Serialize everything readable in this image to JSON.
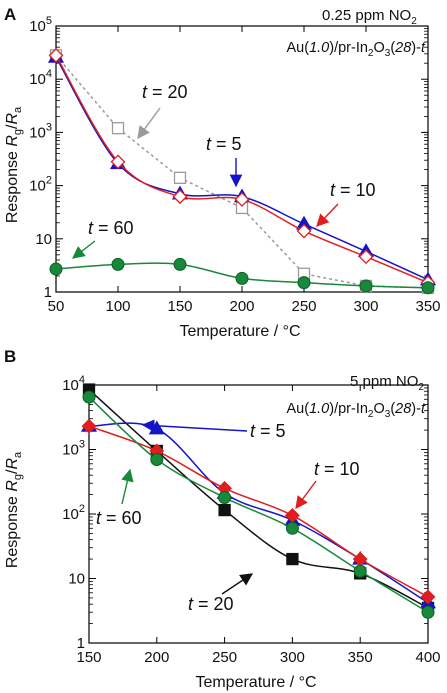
{
  "chart_data": [
    {
      "panel_label": "A",
      "type": "line",
      "condition": "0.25 ppm NO",
      "condition_sub": "2",
      "material": {
        "pre": "Au(",
        "loading": "1.0",
        "mid1": ")/pr-In",
        "sub2": "2",
        "mid2": "O",
        "sub3": "3",
        "mid3": "(",
        "size": "28",
        "post": ")-",
        "var": "t"
      },
      "xlabel": "Temperature / °C",
      "ylabel": {
        "main": "Response ",
        "num": "R",
        "num_sub": "g",
        "slash": "/",
        "den": "R",
        "den_sub": "a"
      },
      "xlim": [
        50,
        350
      ],
      "ylim": [
        1,
        100000
      ],
      "yscale": "log",
      "x_ticks": [
        50,
        100,
        150,
        200,
        250,
        300,
        350
      ],
      "x_tick_labels": [
        "50",
        "100",
        "150",
        "200",
        "250",
        "300",
        "350"
      ],
      "y_ticks": [
        1,
        10,
        100,
        1000,
        10000,
        100000
      ],
      "y_tick_labels": [
        {
          "base": "1",
          "exp": ""
        },
        {
          "base": "10",
          "exp": ""
        },
        {
          "base": "10",
          "exp": "2"
        },
        {
          "base": "10",
          "exp": "3"
        },
        {
          "base": "10",
          "exp": "4"
        },
        {
          "base": "10",
          "exp": "5"
        }
      ],
      "series": [
        {
          "name": "t = 20",
          "color": "#9a9a9a",
          "marker": "square-open",
          "dash": true,
          "x": [
            50,
            100,
            150,
            200,
            250,
            300,
            350
          ],
          "y": [
            28000,
            1200,
            140,
            38,
            2.2,
            1.3,
            1.2
          ]
        },
        {
          "name": "t = 5",
          "color": "#1414c8",
          "marker": "triangle",
          "dash": false,
          "x": [
            50,
            100,
            150,
            200,
            250,
            300,
            350
          ],
          "y": [
            26000,
            260,
            70,
            62,
            19,
            5.8,
            1.7
          ]
        },
        {
          "name": "t = 10",
          "color": "#e01e1e",
          "marker": "diamond-open",
          "dash": false,
          "x": [
            50,
            100,
            150,
            200,
            250,
            300,
            350
          ],
          "y": [
            28000,
            280,
            62,
            55,
            14,
            4.6,
            1.5
          ]
        },
        {
          "name": "t = 60",
          "color": "#18883a",
          "marker": "circle",
          "dash": false,
          "x": [
            50,
            100,
            150,
            200,
            250,
            300,
            350
          ],
          "y": [
            2.7,
            3.3,
            3.3,
            1.8,
            1.5,
            1.3,
            1.2
          ]
        }
      ],
      "annotations": [
        {
          "series": "t = 20",
          "prefix": "t",
          "text": " = 20",
          "color": "#111111"
        },
        {
          "series": "t = 5",
          "prefix": "t",
          "text": " = 5",
          "color": "#1414c8"
        },
        {
          "series": "t = 10",
          "prefix": "t",
          "text": " = 10",
          "color": "#e01e1e"
        },
        {
          "series": "t = 60",
          "prefix": "t",
          "text": " = 60",
          "color": "#18883a"
        }
      ]
    },
    {
      "panel_label": "B",
      "type": "line",
      "condition": "5 ppm NO",
      "condition_sub": "2",
      "material": {
        "pre": "Au(",
        "loading": "1.0",
        "mid1": ")/pr-In",
        "sub2": "2",
        "mid2": "O",
        "sub3": "3",
        "mid3": "(",
        "size": "28",
        "post": ")-",
        "var": "t"
      },
      "xlabel": "Temperature / °C",
      "ylabel": {
        "main": "Response ",
        "num": "R",
        "num_sub": "g",
        "slash": "/",
        "den": "R",
        "den_sub": "a"
      },
      "xlim": [
        150,
        400
      ],
      "ylim": [
        1,
        10000
      ],
      "yscale": "log",
      "x_ticks": [
        150,
        200,
        250,
        300,
        350,
        400
      ],
      "x_tick_labels": [
        "150",
        "200",
        "250",
        "300",
        "350",
        "400"
      ],
      "y_ticks": [
        1,
        10,
        100,
        1000,
        10000
      ],
      "y_tick_labels": [
        {
          "base": "1",
          "exp": ""
        },
        {
          "base": "10",
          "exp": ""
        },
        {
          "base": "10",
          "exp": "2"
        },
        {
          "base": "10",
          "exp": "3"
        },
        {
          "base": "10",
          "exp": "4"
        }
      ],
      "series": [
        {
          "name": "t = 20",
          "color": "#111111",
          "marker": "square",
          "dash": false,
          "x": [
            150,
            200,
            250,
            300,
            350,
            400
          ],
          "y": [
            8500,
            950,
            115,
            20,
            12,
            3.5
          ]
        },
        {
          "name": "t = 5",
          "color": "#1414c8",
          "marker": "triangle",
          "dash": false,
          "x": [
            150,
            200,
            250,
            300,
            350,
            400
          ],
          "y": [
            2300,
            2100,
            210,
            80,
            20,
            4.2
          ]
        },
        {
          "name": "t = 10",
          "color": "#e01e1e",
          "marker": "diamond",
          "dash": false,
          "x": [
            150,
            200,
            250,
            300,
            350,
            400
          ],
          "y": [
            2300,
            950,
            250,
            95,
            20,
            5.2
          ]
        },
        {
          "name": "t = 60",
          "color": "#18883a",
          "marker": "circle",
          "dash": false,
          "x": [
            150,
            200,
            250,
            300,
            350,
            400
          ],
          "y": [
            6500,
            700,
            180,
            60,
            13,
            3
          ]
        }
      ],
      "annotations": [
        {
          "series": "t = 5",
          "prefix": "t",
          "text": " = 5",
          "color": "#1414c8"
        },
        {
          "series": "t = 10",
          "prefix": "t",
          "text": " = 10",
          "color": "#e01e1e"
        },
        {
          "series": "t = 60",
          "prefix": "t",
          "text": " = 60",
          "color": "#18883a"
        },
        {
          "series": "t = 20",
          "prefix": "t",
          "text": " = 20",
          "color": "#111111"
        }
      ]
    }
  ]
}
